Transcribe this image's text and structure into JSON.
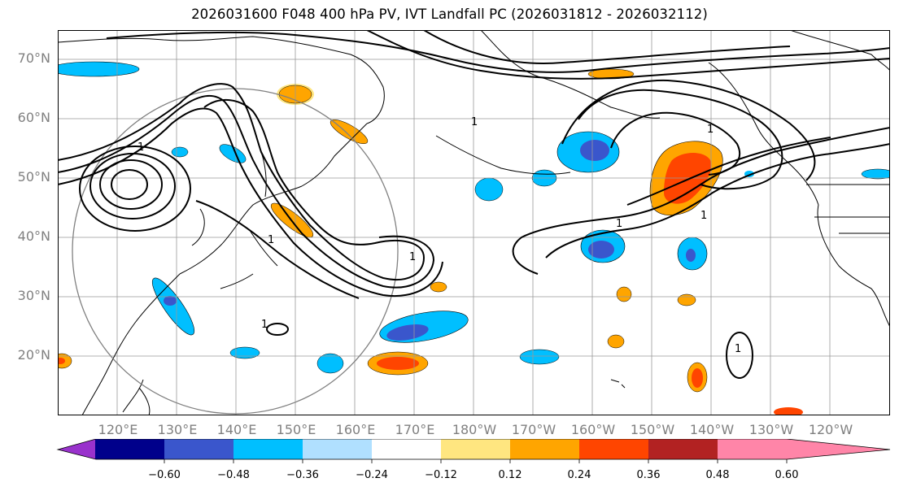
{
  "title": "2026031600 F048 400 hPa PV, IVT Landfall PC (2026031812 - 2026032112)",
  "map": {
    "lon_range": [
      110,
      250
    ],
    "lat_range": [
      10,
      75
    ],
    "lat_labels": [
      "70°N",
      "60°N",
      "50°N",
      "40°N",
      "30°N",
      "20°N"
    ],
    "lon_labels": [
      "120°E",
      "130°E",
      "140°E",
      "150°E",
      "160°E",
      "170°E",
      "180°W",
      "170°W",
      "160°W",
      "150°W",
      "140°W",
      "130°W",
      "120°W"
    ],
    "contour_label": "1"
  },
  "colorbar": {
    "colors": [
      "#9932cc",
      "#00008b",
      "#3a56cc",
      "#00bfff",
      "#b0e0ff",
      "#ffffff",
      "#ffe680",
      "#ffa500",
      "#ff4500",
      "#b22222",
      "#ff85a8"
    ],
    "ticks": [
      "−0.60",
      "−0.48",
      "−0.36",
      "−0.24",
      "−0.12",
      "0.12",
      "0.24",
      "0.36",
      "0.48",
      "0.60"
    ]
  }
}
